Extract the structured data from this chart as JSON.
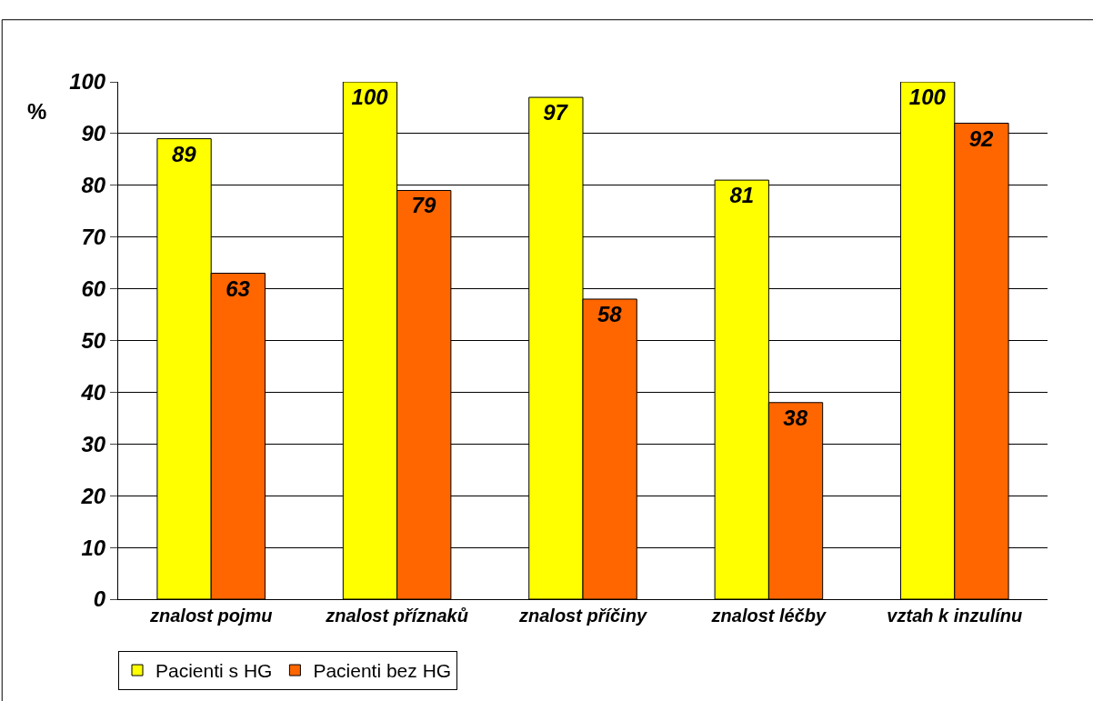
{
  "chart_data": {
    "type": "bar",
    "ylabel": "%",
    "categories": [
      "znalost pojmu",
      "znalost příznaků",
      "znalost příčiny",
      "znalost léčby",
      "vztah k inzulínu"
    ],
    "series": [
      {
        "name": "Pacienti s HG",
        "color": "#ffff00",
        "values": [
          89,
          100,
          97,
          81,
          100
        ]
      },
      {
        "name": "Pacienti bez HG",
        "color": "#ff6600",
        "values": [
          63,
          79,
          58,
          38,
          92
        ]
      }
    ],
    "ylim": [
      0,
      100
    ],
    "yticks": [
      0,
      10,
      20,
      30,
      40,
      50,
      60,
      70,
      80,
      90,
      100
    ],
    "grid": "y",
    "legend": "bottom left",
    "data_labels": true
  }
}
